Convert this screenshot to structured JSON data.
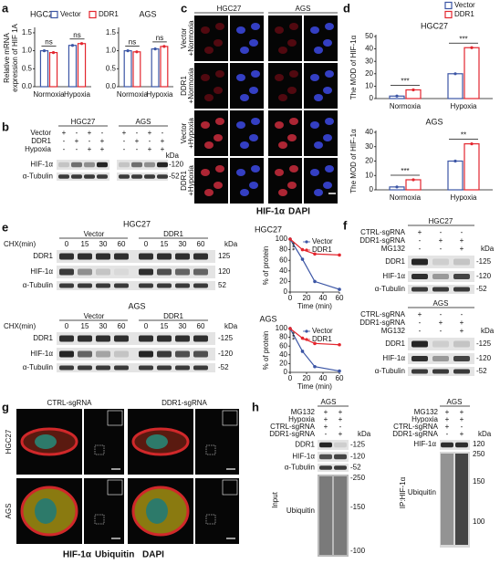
{
  "chart_data": [
    {
      "type": "bar",
      "title": "HGC27",
      "y_label": [
        "Relative mRNA",
        "expression of HIF 1A"
      ],
      "categories": [
        "Normoxia",
        "Hypoxia"
      ],
      "series": [
        {
          "name": "Vector",
          "color": "#3b55a5",
          "values": [
            1.0,
            1.15
          ]
        },
        {
          "name": "DDR1",
          "color": "#e3262e",
          "values": [
            0.95,
            1.2
          ]
        }
      ],
      "annotations": [
        "ns",
        "ns"
      ],
      "ylim": [
        0,
        1.6
      ],
      "yticks": [
        {
          "value": 0,
          "label": "0.0"
        },
        {
          "value": 0.5,
          "label": "0.5"
        },
        {
          "value": 1,
          "label": "1.0"
        },
        {
          "value": 1.5,
          "label": "1.5"
        }
      ]
    },
    {
      "type": "bar",
      "title": "AGS",
      "categories": [
        "Normoxia",
        "Hypoxia"
      ],
      "series": [
        {
          "color": "#3b55a5",
          "values": [
            1.0,
            1.05
          ]
        },
        {
          "color": "#e3262e",
          "values": [
            0.97,
            1.12
          ]
        }
      ],
      "annotations": [
        "ns",
        "ns"
      ],
      "ylim": [
        0,
        1.6
      ],
      "yticks": [
        {
          "value": 0,
          "label": "0.0"
        },
        {
          "value": 0.5,
          "label": "0.5"
        },
        {
          "value": 1,
          "label": "1.0"
        },
        {
          "value": 1.5,
          "label": "1.5"
        }
      ]
    },
    {
      "type": "bar",
      "title": "HGC27",
      "y_label": [
        "The MOD of HIF-1α"
      ],
      "categories": [
        "Normoxia",
        "Hypoxia"
      ],
      "series": [
        {
          "name": "Vector",
          "color": "#3b55a5",
          "values": [
            2,
            20
          ]
        },
        {
          "name": "DDR1",
          "color": "#e3262e",
          "values": [
            7,
            41
          ]
        }
      ],
      "annotations": [
        "***",
        "***"
      ],
      "ylim": [
        0,
        50
      ],
      "yticks": [
        0,
        10,
        20,
        30,
        40,
        50
      ]
    },
    {
      "type": "bar",
      "title": "AGS",
      "y_label": [
        "The MOD of HIF-1α"
      ],
      "categories": [
        "Normoxia",
        "Hypoxia"
      ],
      "series": [
        {
          "color": "#3b55a5",
          "values": [
            2,
            20
          ]
        },
        {
          "color": "#e3262e",
          "values": [
            7,
            32
          ]
        }
      ],
      "annotations": [
        "***",
        "**"
      ],
      "ylim": [
        0,
        40
      ],
      "yticks": [
        0,
        10,
        20,
        30,
        40
      ]
    },
    {
      "type": "line",
      "title": "HGC27",
      "x_label": "Time (min)",
      "y_label": [
        "% of protein"
      ],
      "x": [
        0,
        15,
        30,
        60
      ],
      "series": [
        {
          "name": "Vector",
          "color": "#3b55a5",
          "values": [
            100,
            62,
            20,
            5
          ]
        },
        {
          "name": "DDR1",
          "color": "#e3262e",
          "values": [
            100,
            80,
            72,
            70
          ]
        }
      ],
      "annotations": [
        "***"
      ],
      "xlim": [
        0,
        60
      ],
      "xticks": [
        0,
        20,
        40,
        60
      ],
      "ylim": [
        0,
        100
      ],
      "yticks": [
        0,
        20,
        40,
        60,
        80,
        100
      ]
    },
    {
      "type": "line",
      "title": "AGS",
      "x_label": "Time (min)",
      "y_label": [
        "% of protein"
      ],
      "x": [
        0,
        15,
        30,
        60
      ],
      "series": [
        {
          "name": "Vector",
          "color": "#3b55a5",
          "values": [
            100,
            48,
            13,
            3
          ]
        },
        {
          "name": "DDR1",
          "color": "#e3262e",
          "values": [
            100,
            78,
            66,
            63
          ]
        }
      ],
      "annotations": [
        "***"
      ],
      "xlim": [
        0,
        60
      ],
      "xticks": [
        0,
        20,
        40,
        60
      ],
      "ylim": [
        0,
        100
      ],
      "yticks": [
        0,
        20,
        40,
        60,
        80,
        100
      ]
    }
  ],
  "figure": {
    "panel_labels": [
      "a",
      "b",
      "c",
      "d",
      "e",
      "f",
      "g",
      "h"
    ],
    "b": {
      "headers": [
        "HGC27",
        "AGS"
      ],
      "rows": [
        {
          "label": "Vector",
          "signs": [
            "+",
            "-",
            "+",
            "-",
            "+",
            "-",
            "+",
            "-"
          ]
        },
        {
          "label": "DDR1",
          "signs": [
            "-",
            "+",
            "-",
            "+",
            "-",
            "+",
            "-",
            "+"
          ]
        },
        {
          "label": "Hypoxia",
          "signs": [
            "-",
            "-",
            "+",
            "+",
            "-",
            "-",
            "+",
            "+"
          ]
        }
      ],
      "kda": "kDa",
      "blots": [
        {
          "label": "HIF-1α",
          "marker": "-120"
        },
        {
          "label": "α-Tubulin",
          "marker": "-52"
        }
      ]
    },
    "c": {
      "headers": [
        "HGC27",
        "AGS"
      ],
      "rows": [
        [
          "Vector",
          "+Normoxia"
        ],
        [
          "DDR1",
          "+Normoxia"
        ],
        [
          "Vector",
          "+Hypoxia"
        ],
        [
          "DDR1",
          "+Hypoxia"
        ]
      ],
      "stain": [
        "HIF-1α",
        "DAPI"
      ]
    },
    "e": {
      "blocks": [
        {
          "title": "HGC27",
          "chx": "CHX(min)",
          "groups": [
            "Vector",
            "DDR1"
          ],
          "times": [
            "0",
            "15",
            "30",
            "60",
            "0",
            "15",
            "30",
            "60"
          ],
          "kda": "kDa",
          "blots": [
            {
              "label": "DDR1",
              "marker": "125"
            },
            {
              "label": "HIF-1α",
              "marker": "120"
            },
            {
              "label": "α-Tubulin",
              "marker": "52"
            }
          ]
        },
        {
          "title": "AGS",
          "chx": "CHX(min)",
          "groups": [
            "Vector",
            "DDR1"
          ],
          "times": [
            "0",
            "15",
            "30",
            "60",
            "0",
            "15",
            "30",
            "60"
          ],
          "kda": "kDa",
          "blots": [
            {
              "label": "DDR1",
              "marker": "-125"
            },
            {
              "label": "HIF-1α",
              "marker": "-120"
            },
            {
              "label": "α-Tubulin",
              "marker": "-52"
            }
          ]
        }
      ]
    },
    "f": {
      "blocks": [
        {
          "title": "HGC27",
          "rows": [
            {
              "label": "CTRL-sgRNA",
              "signs": [
                "+",
                "-",
                "-"
              ]
            },
            {
              "label": "DDR1-sgRNA",
              "signs": [
                "-",
                "+",
                "+"
              ]
            },
            {
              "label": "MG132",
              "signs": [
                "-",
                "-",
                "+"
              ]
            }
          ],
          "kda": "kDa",
          "blots": [
            {
              "label": "DDR1",
              "marker": "-125"
            },
            {
              "label": "HIF-1α",
              "marker": "-120"
            },
            {
              "label": "α-Tubulin",
              "marker": "-52"
            }
          ]
        },
        {
          "title": "AGS",
          "rows": [
            {
              "label": "CTRL-sgRNA",
              "signs": [
                "+",
                "-",
                "-"
              ]
            },
            {
              "label": "DDR1-sgRNA",
              "signs": [
                "-",
                "+",
                "+"
              ]
            },
            {
              "label": "MG132",
              "signs": [
                "-",
                "-",
                "+"
              ]
            }
          ],
          "kda": "kDa",
          "blots": [
            {
              "label": "DDR1",
              "marker": "-125"
            },
            {
              "label": "HIF-1α",
              "marker": "-120"
            },
            {
              "label": "α-Tubulin",
              "marker": "-52"
            }
          ]
        }
      ]
    },
    "g": {
      "headers": [
        "CTRL-sgRNA",
        "DDR1-sgRNA"
      ],
      "rows": [
        "HGC27",
        "AGS"
      ],
      "stain": [
        "HIF-1α",
        "Ubiquitin",
        "DAPI"
      ]
    },
    "h": {
      "left": {
        "title": "AGS",
        "rows": [
          {
            "label": "MG132",
            "signs": [
              "+",
              "+"
            ]
          },
          {
            "label": "Hypoxia",
            "signs": [
              "+",
              "+"
            ]
          },
          {
            "label": "CTRL-sgRNA",
            "signs": [
              "+",
              "-"
            ]
          },
          {
            "label": "DDR1-sgRNA",
            "signs": [
              "-",
              "+"
            ]
          }
        ],
        "kda": "kDa",
        "blots": [
          {
            "label": "DDR1",
            "marker": "-125"
          },
          {
            "label": "HIF-1α",
            "marker": "-120"
          },
          {
            "label": "α-Tubulin",
            "marker": "-52"
          }
        ],
        "ubiquitin": "Ubiquitin",
        "markers": [
          "-250",
          "-150",
          "-100"
        ],
        "side": "Input"
      },
      "right": {
        "title": "AGS",
        "rows": [
          {
            "label": "MG132",
            "signs": [
              "+",
              "+"
            ]
          },
          {
            "label": "Hypoxia",
            "signs": [
              "+",
              "+"
            ]
          },
          {
            "label": "CTRL-sgRNA",
            "signs": [
              "+",
              "-"
            ]
          },
          {
            "label": "DDR1-sgRNA",
            "signs": [
              "-",
              "+"
            ]
          }
        ],
        "kda": "kDa",
        "blot": {
          "label": "HIF-1α",
          "marker": "120"
        },
        "ubiquitin": "Ubiquitin",
        "markers": [
          "250",
          "150",
          "100"
        ],
        "side": "IP:HIF-1α"
      }
    }
  }
}
